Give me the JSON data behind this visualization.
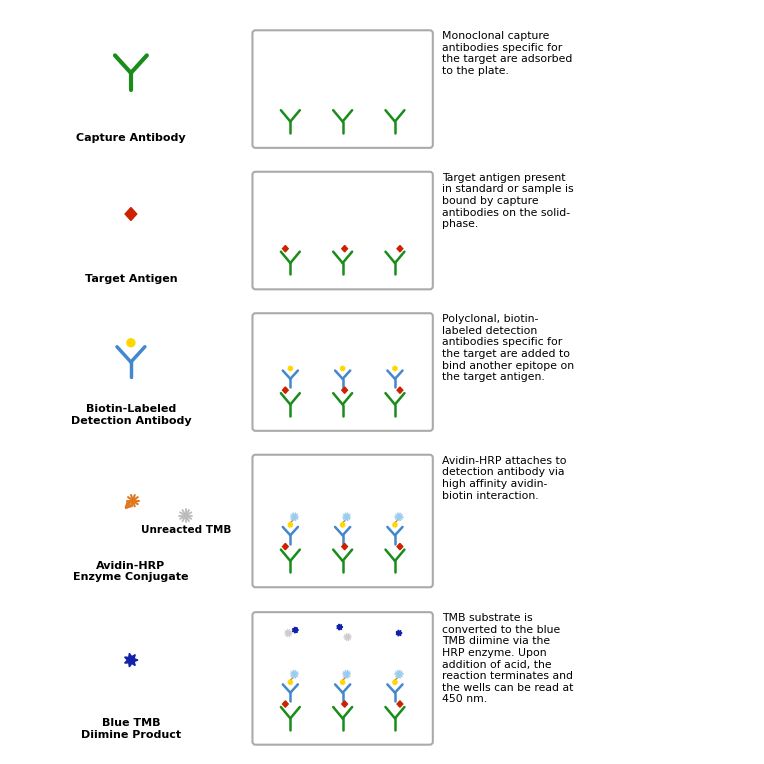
{
  "background_color": "#ffffff",
  "green": "#1A8C1A",
  "blue_ab": "#4488CC",
  "red": "#CC2200",
  "yellow": "#FFD700",
  "orange": "#E07820",
  "gray": "#AAAAAA",
  "blue_tmb": "#1122AA",
  "light_blue": "#99CCEE",
  "white": "#FFFFFF",
  "figsize": [
    7.64,
    7.64
  ],
  "dpi": 100,
  "rows": [
    {
      "label": "Capture Antibody",
      "icon_type": "capture",
      "well_type": "capture_only",
      "desc": "Monoclonal capture\nantibodies specific for\nthe target are adsorbed\nto the plate.",
      "extra_icon": null
    },
    {
      "label": "Target Antigen",
      "icon_type": "antigen",
      "well_type": "capture_antigen",
      "desc": "Target antigen present\nin standard or sample is\nbound by capture\nantibodies on the solid-\nphase.",
      "extra_icon": null
    },
    {
      "label": "Biotin-Labeled\nDetection Antibody",
      "icon_type": "detection",
      "well_type": "detection_added",
      "desc": "Polyclonal, biotin-\nlabeled detection\nantibodies specific for\nthe target are added to\nbind another epitope on\nthe target antigen.",
      "extra_icon": null
    },
    {
      "label": "Avidin-HRP\nEnzyme Conjugate",
      "icon_type": "avidin",
      "well_type": "avidin_added",
      "desc": "Avidin-HRP attaches to\ndetection antibody via\nhigh affinity avidin-\nbiotin interaction.",
      "extra_icon": "tmb_gray"
    },
    {
      "label": "Blue TMB\nDiimine Product",
      "icon_type": "blue_tmb",
      "well_type": "tmb_converted",
      "desc": "TMB substrate is\nconverted to the blue\nTMB diimine via the\nHRP enzyme. Upon\naddition of acid, the\nreaction terminates and\nthe wells can be read at\n450 nm.",
      "extra_icon": null
    }
  ]
}
